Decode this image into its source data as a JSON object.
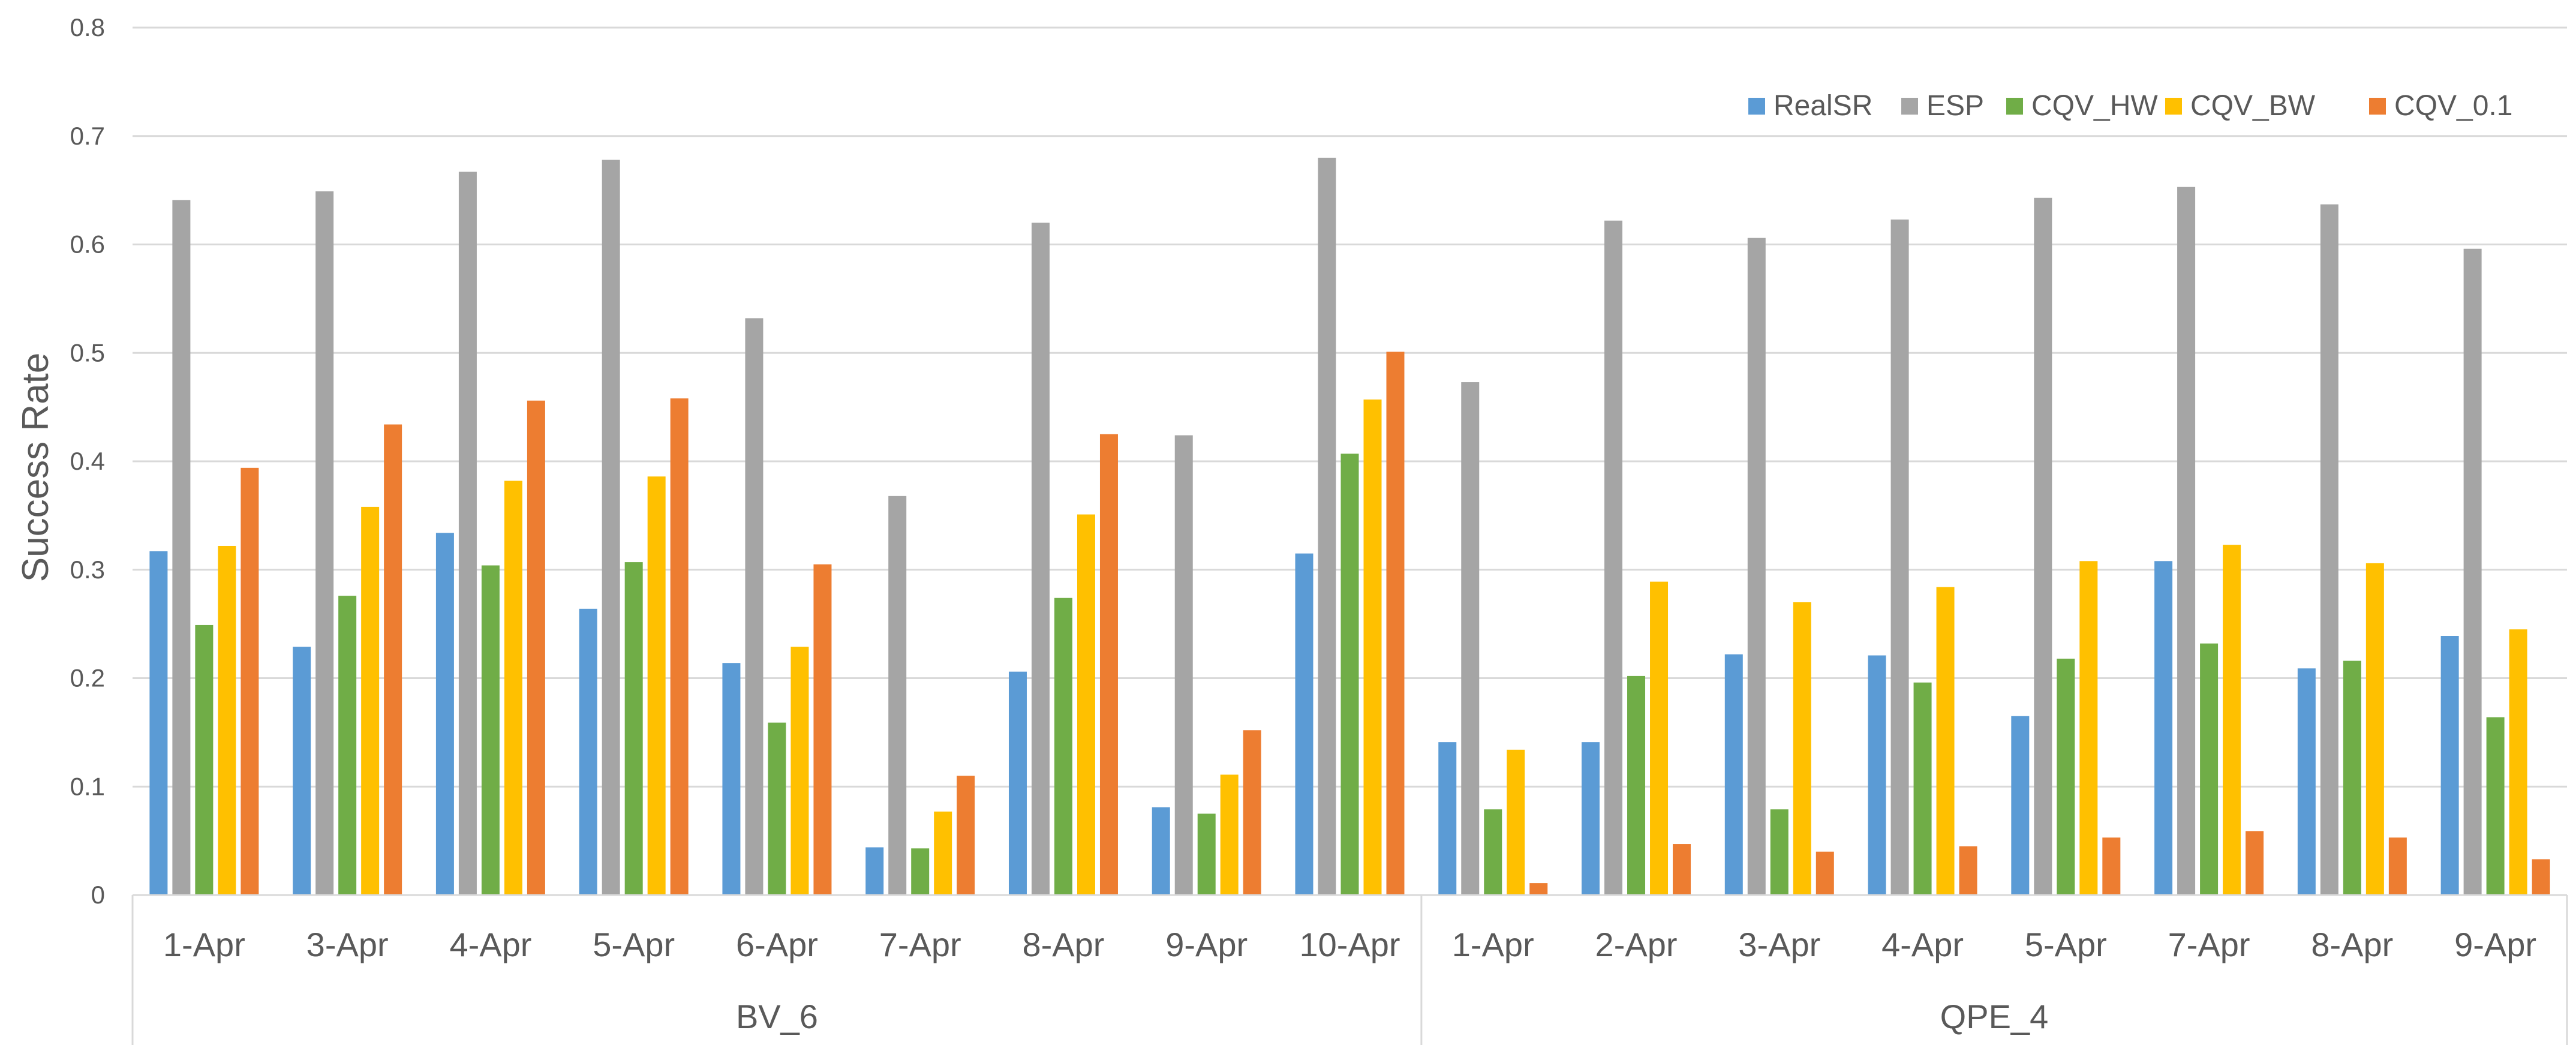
{
  "chart_data": {
    "type": "bar",
    "title": "",
    "ylabel": "Success Rate",
    "xlabel": "",
    "ylim": [
      0,
      0.8
    ],
    "yticks": [
      "0",
      "0.1",
      "0.2",
      "0.3",
      "0.4",
      "0.5",
      "0.6",
      "0.7",
      "0.8"
    ],
    "grid": true,
    "legend_position": "top-right",
    "groups": [
      {
        "name": "BV_6",
        "categories": [
          "1-Apr",
          "3-Apr",
          "4-Apr",
          "5-Apr",
          "6-Apr",
          "7-Apr",
          "8-Apr",
          "9-Apr",
          "10-Apr"
        ]
      },
      {
        "name": "QPE_4",
        "categories": [
          "1-Apr",
          "2-Apr",
          "3-Apr",
          "4-Apr",
          "5-Apr",
          "7-Apr",
          "8-Apr",
          "9-Apr"
        ]
      }
    ],
    "series": [
      {
        "name": "RealSR",
        "color": "#5B9BD5",
        "values": [
          0.317,
          0.229,
          0.334,
          0.264,
          0.214,
          0.044,
          0.206,
          0.081,
          0.315,
          0.141,
          0.141,
          0.222,
          0.221,
          0.165,
          0.308,
          0.209,
          0.239
        ]
      },
      {
        "name": "ESP",
        "color": "#A5A5A5",
        "values": [
          0.641,
          0.649,
          0.667,
          0.678,
          0.532,
          0.368,
          0.62,
          0.424,
          0.68,
          0.473,
          0.622,
          0.606,
          0.623,
          0.643,
          0.653,
          0.637,
          0.596
        ]
      },
      {
        "name": "CQV_HW",
        "color": "#70AD47",
        "values": [
          0.249,
          0.276,
          0.304,
          0.307,
          0.159,
          0.043,
          0.274,
          0.075,
          0.407,
          0.079,
          0.202,
          0.079,
          0.196,
          0.218,
          0.232,
          0.216,
          0.164
        ]
      },
      {
        "name": "CQV_BW",
        "color": "#FFC000",
        "values": [
          0.322,
          0.358,
          0.382,
          0.386,
          0.229,
          0.077,
          0.351,
          0.111,
          0.457,
          0.134,
          0.289,
          0.27,
          0.284,
          0.308,
          0.323,
          0.306,
          0.245
        ]
      },
      {
        "name": "CQV_0.1",
        "color": "#ED7D31",
        "values": [
          0.394,
          0.434,
          0.456,
          0.458,
          0.305,
          0.11,
          0.425,
          0.152,
          0.501,
          0.011,
          0.047,
          0.04,
          0.045,
          0.053,
          0.059,
          0.053,
          0.033
        ]
      }
    ]
  }
}
